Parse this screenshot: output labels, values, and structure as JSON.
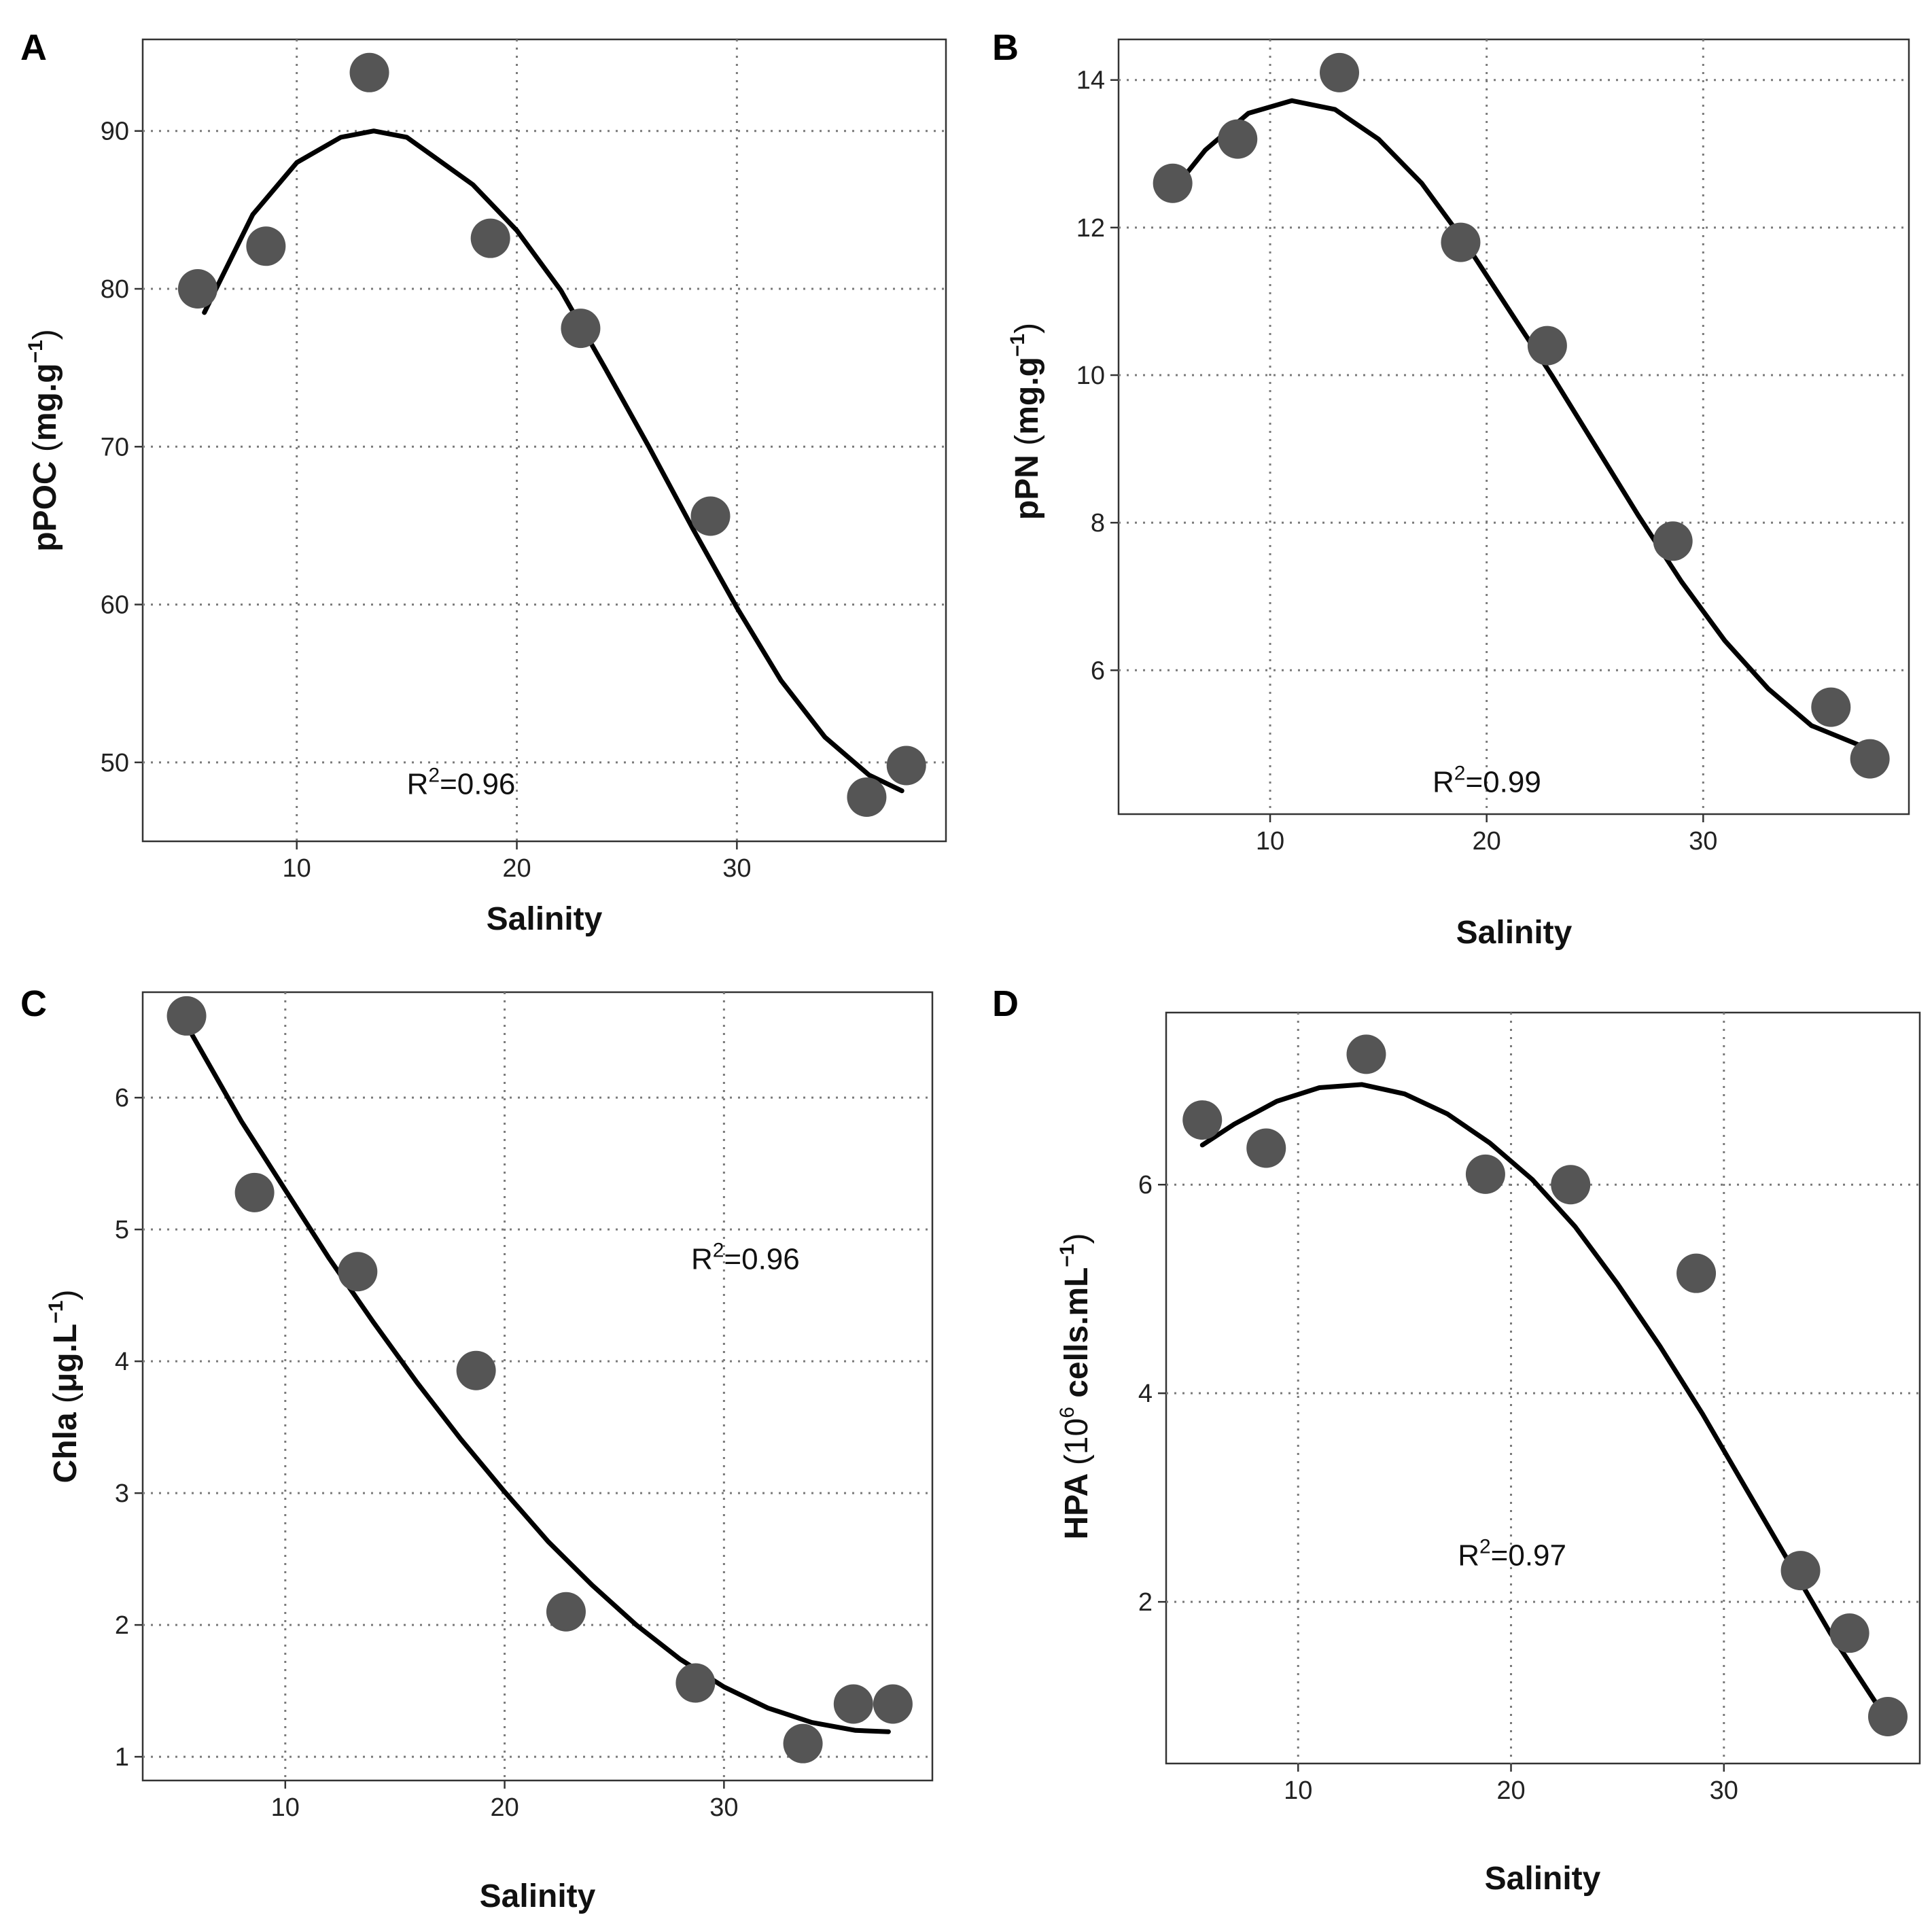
{
  "chart_data": [
    {
      "panel": "A",
      "type": "scatter",
      "xlabel": "Salinity",
      "ylabel": {
        "main": "pPOC",
        "unit": "mg.g",
        "sup": "−1"
      },
      "xlim": [
        3,
        39.5
      ],
      "ylim": [
        45,
        95.8
      ],
      "xticks": [
        10,
        20,
        30
      ],
      "yticks": [
        50,
        60,
        70,
        80,
        90
      ],
      "grid": true,
      "annotation": {
        "prefix": "R",
        "sup": "2",
        "suffix": "=0.96",
        "x": 15,
        "y": 48
      },
      "points": [
        {
          "x": 5.5,
          "y": 80.0
        },
        {
          "x": 8.6,
          "y": 82.7
        },
        {
          "x": 13.3,
          "y": 93.7
        },
        {
          "x": 18.8,
          "y": 83.2
        },
        {
          "x": 22.9,
          "y": 77.5
        },
        {
          "x": 28.8,
          "y": 65.6
        },
        {
          "x": 35.9,
          "y": 47.8
        },
        {
          "x": 37.7,
          "y": 49.8
        }
      ],
      "fit": [
        {
          "x": 5.8,
          "y": 78.5
        },
        {
          "x": 8,
          "y": 84.7
        },
        {
          "x": 10,
          "y": 88.0
        },
        {
          "x": 12,
          "y": 89.6
        },
        {
          "x": 13.5,
          "y": 90.0
        },
        {
          "x": 15,
          "y": 89.6
        },
        {
          "x": 18,
          "y": 86.6
        },
        {
          "x": 20,
          "y": 83.7
        },
        {
          "x": 22,
          "y": 79.9
        },
        {
          "x": 24,
          "y": 75.0
        },
        {
          "x": 26,
          "y": 70.0
        },
        {
          "x": 28,
          "y": 64.8
        },
        {
          "x": 30,
          "y": 59.8
        },
        {
          "x": 32,
          "y": 55.2
        },
        {
          "x": 34,
          "y": 51.6
        },
        {
          "x": 36,
          "y": 49.2
        },
        {
          "x": 37.5,
          "y": 48.2
        }
      ]
    },
    {
      "panel": "B",
      "type": "scatter",
      "xlabel": "Salinity",
      "ylabel": {
        "main": "pPN",
        "unit": "mg.g",
        "sup": "−1"
      },
      "xlim": [
        3,
        39.5
      ],
      "ylim": [
        4.05,
        14.55
      ],
      "xticks": [
        10,
        20,
        30
      ],
      "yticks": [
        6,
        8,
        10,
        12,
        14
      ],
      "grid": true,
      "annotation": {
        "prefix": "R",
        "sup": "2",
        "suffix": "=0.99",
        "x": 17.5,
        "y": 4.35
      },
      "points": [
        {
          "x": 5.5,
          "y": 12.6
        },
        {
          "x": 8.5,
          "y": 13.2
        },
        {
          "x": 13.2,
          "y": 14.1
        },
        {
          "x": 18.8,
          "y": 11.8
        },
        {
          "x": 22.8,
          "y": 10.4
        },
        {
          "x": 28.6,
          "y": 7.75
        },
        {
          "x": 35.9,
          "y": 5.5
        },
        {
          "x": 37.7,
          "y": 4.8
        }
      ],
      "fit": [
        {
          "x": 5.5,
          "y": 12.5
        },
        {
          "x": 7,
          "y": 13.05
        },
        {
          "x": 9,
          "y": 13.55
        },
        {
          "x": 11,
          "y": 13.72
        },
        {
          "x": 13,
          "y": 13.6
        },
        {
          "x": 15,
          "y": 13.2
        },
        {
          "x": 17,
          "y": 12.6
        },
        {
          "x": 19,
          "y": 11.8
        },
        {
          "x": 21,
          "y": 10.9
        },
        {
          "x": 23,
          "y": 10.0
        },
        {
          "x": 25,
          "y": 9.05
        },
        {
          "x": 27,
          "y": 8.1
        },
        {
          "x": 29,
          "y": 7.2
        },
        {
          "x": 31,
          "y": 6.4
        },
        {
          "x": 33,
          "y": 5.75
        },
        {
          "x": 35,
          "y": 5.25
        },
        {
          "x": 37.5,
          "y": 4.95
        }
      ]
    },
    {
      "panel": "C",
      "type": "scatter",
      "xlabel": "Salinity",
      "ylabel": {
        "main": "Chla",
        "unit": "μg.L",
        "sup": "−1"
      },
      "xlim": [
        3.5,
        39.5
      ],
      "ylim": [
        0.82,
        6.8
      ],
      "xticks": [
        10,
        20,
        30
      ],
      "yticks": [
        1,
        2,
        3,
        4,
        5,
        6
      ],
      "grid": true,
      "annotation": {
        "prefix": "R",
        "sup": "2",
        "suffix": "=0.96",
        "x": 28.5,
        "y": 4.7
      },
      "points": [
        {
          "x": 5.5,
          "y": 6.62
        },
        {
          "x": 8.6,
          "y": 5.28
        },
        {
          "x": 13.3,
          "y": 4.68
        },
        {
          "x": 18.7,
          "y": 3.93
        },
        {
          "x": 22.8,
          "y": 2.1
        },
        {
          "x": 28.7,
          "y": 1.56
        },
        {
          "x": 33.6,
          "y": 1.1
        },
        {
          "x": 35.9,
          "y": 1.4
        },
        {
          "x": 37.7,
          "y": 1.4
        }
      ],
      "fit": [
        {
          "x": 5.5,
          "y": 6.55
        },
        {
          "x": 8,
          "y": 5.82
        },
        {
          "x": 10,
          "y": 5.3
        },
        {
          "x": 12,
          "y": 4.78
        },
        {
          "x": 14,
          "y": 4.3
        },
        {
          "x": 16,
          "y": 3.84
        },
        {
          "x": 18,
          "y": 3.41
        },
        {
          "x": 20,
          "y": 3.01
        },
        {
          "x": 22,
          "y": 2.63
        },
        {
          "x": 24,
          "y": 2.3
        },
        {
          "x": 26,
          "y": 2.0
        },
        {
          "x": 28,
          "y": 1.74
        },
        {
          "x": 30,
          "y": 1.53
        },
        {
          "x": 32,
          "y": 1.37
        },
        {
          "x": 34,
          "y": 1.26
        },
        {
          "x": 36,
          "y": 1.2
        },
        {
          "x": 37.5,
          "y": 1.19
        }
      ]
    },
    {
      "panel": "D",
      "type": "scatter",
      "xlabel": "Salinity",
      "ylabel": {
        "main": "HPA",
        "open": "(10",
        "sup1": "6",
        "unit": "cells.mL",
        "sup": "−1",
        "close": ")"
      },
      "xlim": [
        3.8,
        39.2
      ],
      "ylim": [
        0.45,
        7.65
      ],
      "xticks": [
        10,
        20,
        30
      ],
      "yticks": [
        2,
        4,
        6
      ],
      "grid": true,
      "annotation": {
        "prefix": "R",
        "sup": "2",
        "suffix": "=0.97",
        "x": 17.5,
        "y": 2.35
      },
      "points": [
        {
          "x": 5.5,
          "y": 6.62
        },
        {
          "x": 8.5,
          "y": 6.35
        },
        {
          "x": 13.2,
          "y": 7.25
        },
        {
          "x": 18.8,
          "y": 6.1
        },
        {
          "x": 22.8,
          "y": 6.0
        },
        {
          "x": 28.7,
          "y": 5.15
        },
        {
          "x": 33.6,
          "y": 2.3
        },
        {
          "x": 35.9,
          "y": 1.7
        },
        {
          "x": 37.7,
          "y": 0.9
        }
      ],
      "fit": [
        {
          "x": 5.5,
          "y": 6.38
        },
        {
          "x": 7,
          "y": 6.58
        },
        {
          "x": 9,
          "y": 6.8
        },
        {
          "x": 11,
          "y": 6.93
        },
        {
          "x": 13,
          "y": 6.96
        },
        {
          "x": 15,
          "y": 6.87
        },
        {
          "x": 17,
          "y": 6.68
        },
        {
          "x": 19,
          "y": 6.4
        },
        {
          "x": 21,
          "y": 6.05
        },
        {
          "x": 23,
          "y": 5.6
        },
        {
          "x": 25,
          "y": 5.05
        },
        {
          "x": 27,
          "y": 4.45
        },
        {
          "x": 29,
          "y": 3.8
        },
        {
          "x": 31,
          "y": 3.1
        },
        {
          "x": 33,
          "y": 2.4
        },
        {
          "x": 35,
          "y": 1.7
        },
        {
          "x": 37.5,
          "y": 0.92
        }
      ]
    }
  ]
}
